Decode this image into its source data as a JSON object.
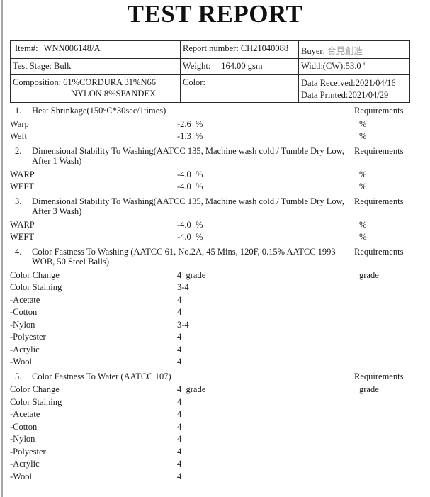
{
  "title": "TEST REPORT",
  "colors": {
    "text": "#1d1d1d",
    "table_border": "#2b2b2b",
    "buyer_cjk_text": "#9a9a9a"
  },
  "info": {
    "item": {
      "label": "Item#:",
      "value": "WNN006148/A"
    },
    "report_number": {
      "label": "Report number:",
      "value": "CH21040088"
    },
    "buyer": {
      "label": "Buyer:",
      "value": "合見創造"
    },
    "test_stage": {
      "label": "Test Stage:",
      "value": "Bulk"
    },
    "weight": {
      "label": "Weight:",
      "value": "164.00 gsm"
    },
    "width": {
      "label": "Width(CW):",
      "value": "53.0 \""
    },
    "composition": {
      "label": "Composition:",
      "line1": "61%CORDURA 31%N66",
      "line2": "NYLON 8%SPANDEX"
    },
    "color": {
      "label": "Color:",
      "value": ""
    },
    "date_received": {
      "label": "Data Received:",
      "value": "2021/04/16"
    },
    "date_printed": {
      "label": "Data Printed:",
      "value": "2021/04/29"
    }
  },
  "sections": [
    {
      "num": "1.",
      "heading": "Heat Shrinkage(150°C*30sec/1times)",
      "requirements_label": "Requirements",
      "rows": [
        {
          "label": "Warp",
          "value": "-2.6  %",
          "req": "%"
        },
        {
          "label": "Weft",
          "value": "-1.3  %",
          "req": "%"
        }
      ]
    },
    {
      "num": "2.",
      "heading": "Dimensional Stability To Washing(AATCC 135, Machine wash cold / Tumble Dry Low, After 1 Wash)",
      "requirements_label": "Requirements",
      "rows": [
        {
          "label": "WARP",
          "value": "-4.0  %",
          "req": "%"
        },
        {
          "label": "WEFT",
          "value": "-4.0  %",
          "req": "%"
        }
      ]
    },
    {
      "num": "3.",
      "heading": "Dimensional Stability To Washing(AATCC 135, Machine wash cold / Tumble Dry Low, After 3 Wash)",
      "requirements_label": "Requirements",
      "rows": [
        {
          "label": "WARP",
          "value": "-4.0  %",
          "req": "%"
        },
        {
          "label": "WEFT",
          "value": "-4.0  %",
          "req": "%"
        }
      ]
    },
    {
      "num": "4.",
      "heading": "Color Fastness To Washing (AATCC 61, No.2A, 45 Mins, 120F, 0.15% AATCC 1993 WOB, 50 Steel Balls)",
      "requirements_label": "Requirements",
      "rows": [
        {
          "label": "Color Change",
          "value": "4  grade",
          "req": "grade"
        },
        {
          "label": "Color Staining",
          "value": "3-4",
          "req": ""
        },
        {
          "label": "-Acetate",
          "value": "4",
          "req": ""
        },
        {
          "label": "-Cotton",
          "value": "4",
          "req": ""
        },
        {
          "label": "-Nylon",
          "value": "3-4",
          "req": ""
        },
        {
          "label": "-Polyester",
          "value": "4",
          "req": ""
        },
        {
          "label": "-Acrylic",
          "value": "4",
          "req": ""
        },
        {
          "label": "-Wool",
          "value": "4",
          "req": ""
        }
      ]
    },
    {
      "num": "5.",
      "heading": "Color Fastness To Water (AATCC 107)",
      "requirements_label": "Requirements",
      "rows": [
        {
          "label": "Color Change",
          "value": "4  grade",
          "req": "grade"
        },
        {
          "label": "Color Staining",
          "value": "4",
          "req": ""
        },
        {
          "label": "-Acetate",
          "value": "4",
          "req": ""
        },
        {
          "label": "-Cotton",
          "value": "4",
          "req": ""
        },
        {
          "label": "-Nylon",
          "value": "4",
          "req": ""
        },
        {
          "label": "-Polyester",
          "value": "4",
          "req": ""
        },
        {
          "label": "-Acrylic",
          "value": "4",
          "req": ""
        },
        {
          "label": "-Wool",
          "value": "4",
          "req": ""
        }
      ]
    }
  ]
}
